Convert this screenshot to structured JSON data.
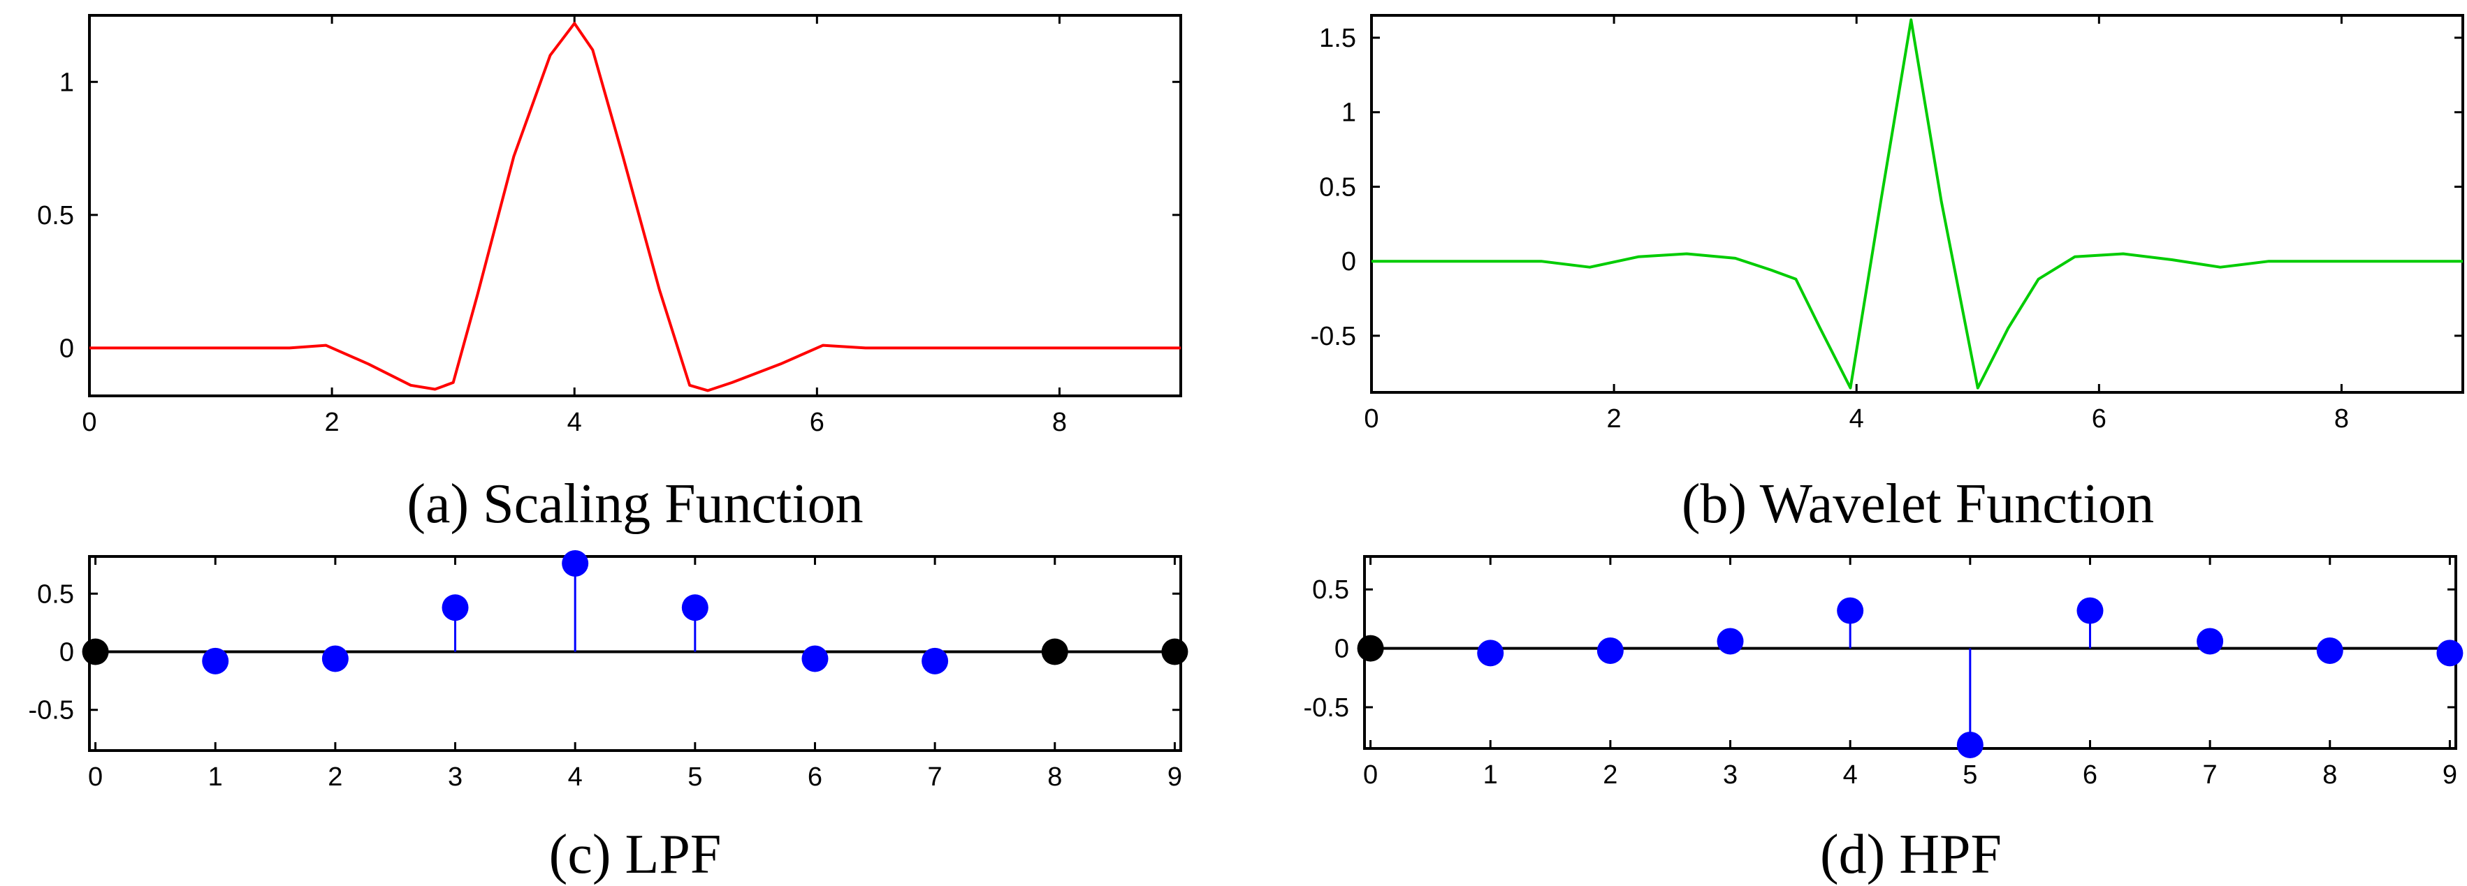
{
  "chart_data": [
    {
      "id": "a",
      "type": "line",
      "title": "(a) Scaling Function",
      "color": "#ff0000",
      "xlim": [
        0,
        9
      ],
      "ylim": [
        -0.18,
        1.25
      ],
      "xticks": [
        0,
        2,
        4,
        6,
        8
      ],
      "xtick_labels": [
        "0",
        "2",
        "4",
        "6",
        "8"
      ],
      "yticks": [
        0,
        0.5,
        1
      ],
      "ytick_labels": [
        "0",
        "0.5",
        "1"
      ],
      "x": [
        0,
        1.65,
        1.95,
        2.3,
        2.65,
        2.85,
        3.0,
        3.2,
        3.5,
        3.8,
        4.0,
        4.15,
        4.4,
        4.7,
        4.95,
        5.1,
        5.3,
        5.7,
        6.05,
        6.4,
        9.0
      ],
      "y": [
        0,
        0,
        0.01,
        -0.06,
        -0.14,
        -0.155,
        -0.13,
        0.2,
        0.72,
        1.1,
        1.22,
        1.12,
        0.72,
        0.22,
        -0.14,
        -0.16,
        -0.13,
        -0.06,
        0.01,
        0,
        0
      ]
    },
    {
      "id": "b",
      "type": "line",
      "title": "(b) Wavelet Function",
      "color": "#00cc00",
      "xlim": [
        0,
        9
      ],
      "ylim": [
        -0.88,
        1.65
      ],
      "xticks": [
        0,
        2,
        4,
        6,
        8
      ],
      "xtick_labels": [
        "0",
        "2",
        "4",
        "6",
        "8"
      ],
      "yticks": [
        -0.5,
        0,
        0.5,
        1,
        1.5
      ],
      "ytick_labels": [
        "-0.5",
        "0",
        "0.5",
        "1",
        "1.5"
      ],
      "x": [
        0,
        1.4,
        1.8,
        2.2,
        2.6,
        3.0,
        3.3,
        3.5,
        3.7,
        3.95,
        4.2,
        4.45,
        4.7,
        5.0,
        5.25,
        5.5,
        5.8,
        6.2,
        6.6,
        7.0,
        7.4,
        9.0
      ],
      "y": [
        0,
        0,
        -0.04,
        0.03,
        0.05,
        0.02,
        -0.06,
        -0.12,
        -0.45,
        -0.85,
        0.4,
        1.62,
        0.4,
        -0.85,
        -0.45,
        -0.12,
        0.03,
        0.05,
        0.01,
        -0.04,
        0,
        0
      ]
    },
    {
      "id": "c",
      "type": "stem",
      "title": "(c) LPF",
      "color": "#0000ff",
      "xlim": [
        -0.05,
        9.05
      ],
      "ylim": [
        -0.85,
        0.82
      ],
      "xticks": [
        0,
        1,
        2,
        3,
        4,
        5,
        6,
        7,
        8,
        9
      ],
      "xtick_labels": [
        "0",
        "1",
        "2",
        "3",
        "4",
        "5",
        "6",
        "7",
        "8",
        "9"
      ],
      "yticks": [
        -0.5,
        0,
        0.5
      ],
      "ytick_labels": [
        "-0.5",
        "0",
        "0.5"
      ],
      "x": [
        0,
        1,
        2,
        3,
        4,
        5,
        6,
        7,
        8,
        9
      ],
      "values": [
        0,
        -0.08,
        -0.06,
        0.38,
        0.76,
        0.38,
        -0.06,
        -0.08,
        0,
        0
      ]
    },
    {
      "id": "d",
      "type": "stem",
      "title": "(d) HPF",
      "color": "#0000ff",
      "xlim": [
        -0.05,
        9.05
      ],
      "ylim": [
        -0.85,
        0.78
      ],
      "xticks": [
        0,
        1,
        2,
        3,
        4,
        5,
        6,
        7,
        8,
        9
      ],
      "xtick_labels": [
        "0",
        "1",
        "2",
        "3",
        "4",
        "5",
        "6",
        "7",
        "8",
        "9"
      ],
      "yticks": [
        -0.5,
        0,
        0.5
      ],
      "ytick_labels": [
        "-0.5",
        "0",
        "0.5"
      ],
      "x": [
        0,
        1,
        2,
        3,
        4,
        5,
        6,
        7,
        8,
        9
      ],
      "values": [
        0,
        -0.04,
        -0.02,
        0.06,
        0.32,
        -0.82,
        0.32,
        0.06,
        -0.02,
        -0.04
      ]
    }
  ]
}
